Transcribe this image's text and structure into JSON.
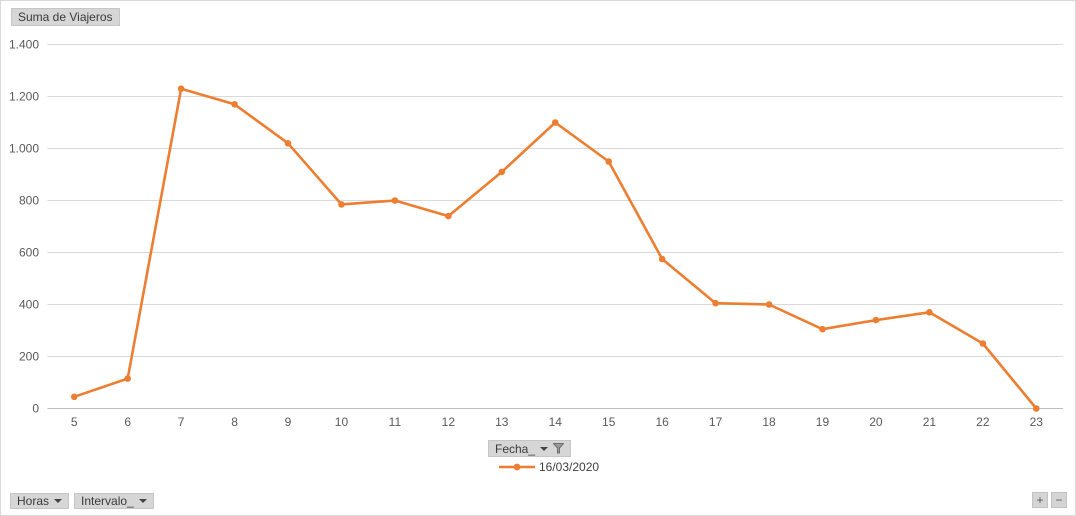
{
  "chart": {
    "value_field_button": "Suma de Viajeros",
    "legend_field_button": "Fecha_",
    "legend_series_label": "16/03/2020",
    "axis_field_buttons": [
      "Horas",
      "Intervalo_"
    ],
    "zoom_in_label": "+",
    "zoom_out_label": "−"
  },
  "chart_data": {
    "type": "line",
    "title": "",
    "xlabel": "",
    "ylabel": "",
    "categories": [
      "5",
      "6",
      "7",
      "8",
      "9",
      "10",
      "11",
      "12",
      "13",
      "14",
      "15",
      "16",
      "17",
      "18",
      "19",
      "20",
      "21",
      "22",
      "23"
    ],
    "series": [
      {
        "name": "16/03/2020",
        "values": [
          45,
          115,
          1230,
          1170,
          1020,
          785,
          800,
          740,
          910,
          1100,
          950,
          575,
          405,
          400,
          305,
          340,
          370,
          250,
          0
        ]
      }
    ],
    "ylim": [
      0,
      1400
    ],
    "ytick_values": [
      0,
      200,
      400,
      600,
      800,
      1000,
      1200,
      1400
    ],
    "ytick_labels": [
      "0",
      "200",
      "400",
      "600",
      "800",
      "1.000",
      "1.200",
      "1.400"
    ],
    "grid": true,
    "legend_position": "bottom",
    "colors": {
      "series": "#ED7D31",
      "gridline": "#D9D9D9",
      "axis": "#BFBFBF",
      "tick_text": "#595959"
    }
  }
}
